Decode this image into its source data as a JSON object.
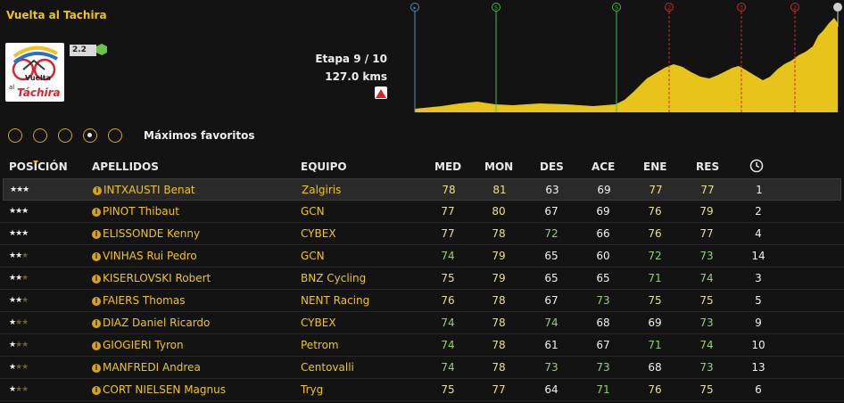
{
  "race": {
    "title": "Vuelta al Tachira",
    "logo_text_1": "Vuelta",
    "logo_text_2": "al",
    "logo_text_3": "Táchira",
    "category": "2.2",
    "category_hex_color": "#6cc24a",
    "stage": "Etapa 9 / 10",
    "distance": "127.0 kms",
    "stage_type_icon": "mountain-stage-icon",
    "stage_type_color": "#d9242b"
  },
  "profile": {
    "markers": [
      {
        "label": "▸",
        "color": "#4a90c2",
        "icon": "start-icon"
      },
      {
        "label": "S",
        "color": "#3fbf3f",
        "icon": "sprint-icon"
      },
      {
        "label": "S",
        "color": "#3fbf3f",
        "icon": "sprint-icon"
      },
      {
        "label": "2",
        "color": "#cc2a2a",
        "icon": "climb-cat2-icon"
      },
      {
        "label": "3",
        "color": "#cc2a2a",
        "icon": "climb-cat3-icon"
      },
      {
        "label": "2",
        "color": "#cc2a2a",
        "icon": "climb-cat2-icon"
      },
      {
        "label": "",
        "color": "#d0d0d0",
        "icon": "finish-flag-icon"
      }
    ],
    "fill_color": "#e8c41a"
  },
  "filters": {
    "options": [
      "",
      "",
      "",
      "",
      ""
    ],
    "selected_index": 3,
    "label": "Máximos favoritos"
  },
  "table": {
    "headers": {
      "position": "POSICIÓN",
      "surname": "APELLIDOS",
      "team": "EQUIPO",
      "med": "MED",
      "mon": "MON",
      "des": "DES",
      "ace": "ACE",
      "ene": "ENE",
      "res": "RES",
      "clock_icon": "clock-icon"
    },
    "rows": [
      {
        "stars": 3,
        "name": "INTXAUSTI Benat",
        "team": "Zalgiris",
        "med": "78",
        "mon": "81",
        "des": "63",
        "ace": "69",
        "ene": "77",
        "res": "77",
        "pos": "1"
      },
      {
        "stars": 3,
        "name": "PINOT Thibaut",
        "team": "GCN",
        "med": "77",
        "mon": "80",
        "des": "67",
        "ace": "69",
        "ene": "76",
        "res": "79",
        "pos": "2"
      },
      {
        "stars": 3,
        "name": "ELISSONDE Kenny",
        "team": "CYBEX",
        "med": "77",
        "mon": "78",
        "des": "72",
        "ace": "66",
        "ene": "76",
        "res": "77",
        "pos": "4"
      },
      {
        "stars": 2,
        "name": "VINHAS Rui Pedro",
        "team": "GCN",
        "med": "74",
        "mon": "79",
        "des": "65",
        "ace": "60",
        "ene": "72",
        "res": "73",
        "pos": "14"
      },
      {
        "stars": 2,
        "name": "KISERLOVSKI Robert",
        "team": "BNZ Cycling",
        "med": "75",
        "mon": "79",
        "des": "65",
        "ace": "65",
        "ene": "71",
        "res": "74",
        "pos": "3"
      },
      {
        "stars": 2,
        "name": "FAIERS Thomas",
        "team": "NENT Racing",
        "med": "76",
        "mon": "78",
        "des": "67",
        "ace": "73",
        "ene": "75",
        "res": "75",
        "pos": "5"
      },
      {
        "stars": 1,
        "name": "DIAZ Daniel Ricardo",
        "team": "CYBEX",
        "med": "74",
        "mon": "78",
        "des": "74",
        "ace": "68",
        "ene": "69",
        "res": "73",
        "pos": "9"
      },
      {
        "stars": 1,
        "name": "GIOGIERI Tyron",
        "team": "Petrom",
        "med": "74",
        "mon": "78",
        "des": "61",
        "ace": "67",
        "ene": "71",
        "res": "74",
        "pos": "10"
      },
      {
        "stars": 1,
        "name": "MANFREDI Andrea",
        "team": "Centovalli",
        "med": "74",
        "mon": "78",
        "des": "73",
        "ace": "73",
        "ene": "68",
        "res": "73",
        "pos": "13"
      },
      {
        "stars": 1,
        "name": "CORT NIELSEN Magnus",
        "team": "Tryg",
        "med": "75",
        "mon": "77",
        "des": "64",
        "ace": "71",
        "ene": "76",
        "res": "75",
        "pos": "6"
      }
    ],
    "value_colors": {
      "high": "#e6e08a",
      "mid": "#8fd46a",
      "low": "#f0f0f0"
    }
  }
}
